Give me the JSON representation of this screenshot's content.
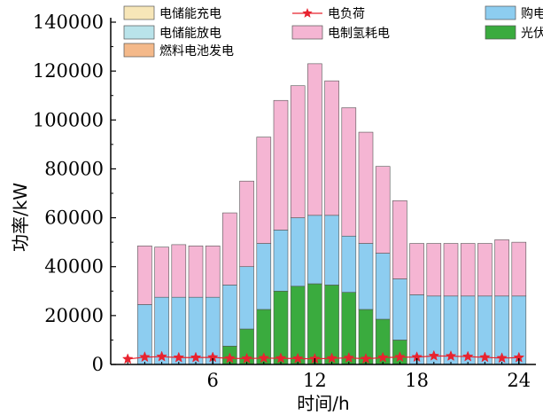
{
  "chart_data": {
    "type": "bar",
    "stacked": true,
    "xlabel": "时间/h",
    "ylabel": "功率/kW",
    "x": [
      1,
      2,
      3,
      4,
      5,
      6,
      7,
      8,
      9,
      10,
      11,
      12,
      13,
      14,
      15,
      16,
      17,
      18,
      19,
      20,
      21,
      22,
      23,
      24
    ],
    "x_ticks": [
      6,
      12,
      18,
      24
    ],
    "y_ticks": [
      0,
      20000,
      40000,
      60000,
      80000,
      100000,
      120000,
      140000
    ],
    "ylim": [
      0,
      140000
    ],
    "series": [
      {
        "name": "电储能充电",
        "color": "#f7e6b8",
        "values": [
          0,
          0,
          0,
          0,
          0,
          0,
          0,
          0,
          0,
          0,
          0,
          0,
          0,
          0,
          0,
          0,
          0,
          0,
          0,
          0,
          0,
          0,
          0,
          0
        ]
      },
      {
        "name": "电储能放电",
        "color": "#b9e3ea",
        "values": [
          0,
          0,
          0,
          0,
          0,
          0,
          0,
          0,
          0,
          0,
          0,
          0,
          0,
          0,
          0,
          0,
          0,
          0,
          0,
          0,
          0,
          0,
          0,
          0
        ]
      },
      {
        "name": "燃料电池发电",
        "color": "#f4b98a",
        "values": [
          0,
          0,
          0,
          0,
          0,
          0,
          0,
          0,
          0,
          0,
          0,
          0,
          0,
          0,
          0,
          0,
          0,
          0,
          0,
          0,
          0,
          0,
          0,
          0
        ]
      },
      {
        "name": "光伏",
        "color": "#3aab3e",
        "values": [
          0,
          0,
          0,
          0,
          0,
          0,
          7500,
          14500,
          22500,
          30000,
          32000,
          33000,
          32500,
          29500,
          22500,
          18500,
          10000,
          0,
          0,
          0,
          0,
          0,
          0,
          0
        ]
      },
      {
        "name": "购电",
        "color": "#8dcdf0",
        "values": [
          0,
          24500,
          27500,
          27500,
          27500,
          27500,
          25000,
          25500,
          27000,
          25000,
          28000,
          28000,
          28500,
          23000,
          27000,
          27000,
          25000,
          28500,
          28000,
          28000,
          28000,
          28000,
          28000,
          28000
        ]
      },
      {
        "name": "电制氢耗电",
        "color": "#f5b5d3",
        "values": [
          0,
          24000,
          20500,
          21500,
          21000,
          21000,
          29500,
          35000,
          43500,
          53000,
          54000,
          62000,
          55000,
          52500,
          45500,
          35500,
          32000,
          21000,
          21500,
          21500,
          21500,
          21500,
          23000,
          22000
        ]
      }
    ],
    "line_series": {
      "name": "电负荷",
      "color": "#e8232f",
      "values": [
        2200,
        3000,
        3200,
        2800,
        2800,
        2900,
        2500,
        2400,
        2600,
        2500,
        2400,
        2300,
        2500,
        2700,
        2300,
        2800,
        3000,
        3000,
        3500,
        3400,
        3200,
        2900,
        2600,
        2800
      ]
    },
    "legend": [
      {
        "name": "电储能充电",
        "kind": "box",
        "color": "#f7e6b8"
      },
      {
        "name": "电负荷",
        "kind": "line",
        "color": "#e8232f"
      },
      {
        "name": "购电",
        "kind": "box",
        "color": "#8dcdf0"
      },
      {
        "name": "电储能放电",
        "kind": "box",
        "color": "#b9e3ea"
      },
      {
        "name": "电制氢耗电",
        "kind": "box",
        "color": "#f5b5d3"
      },
      {
        "name": "光伏",
        "kind": "box",
        "color": "#3aab3e"
      },
      {
        "name": "燃料电池发电",
        "kind": "box",
        "color": "#f4b98a"
      }
    ],
    "legend_position": "top"
  }
}
